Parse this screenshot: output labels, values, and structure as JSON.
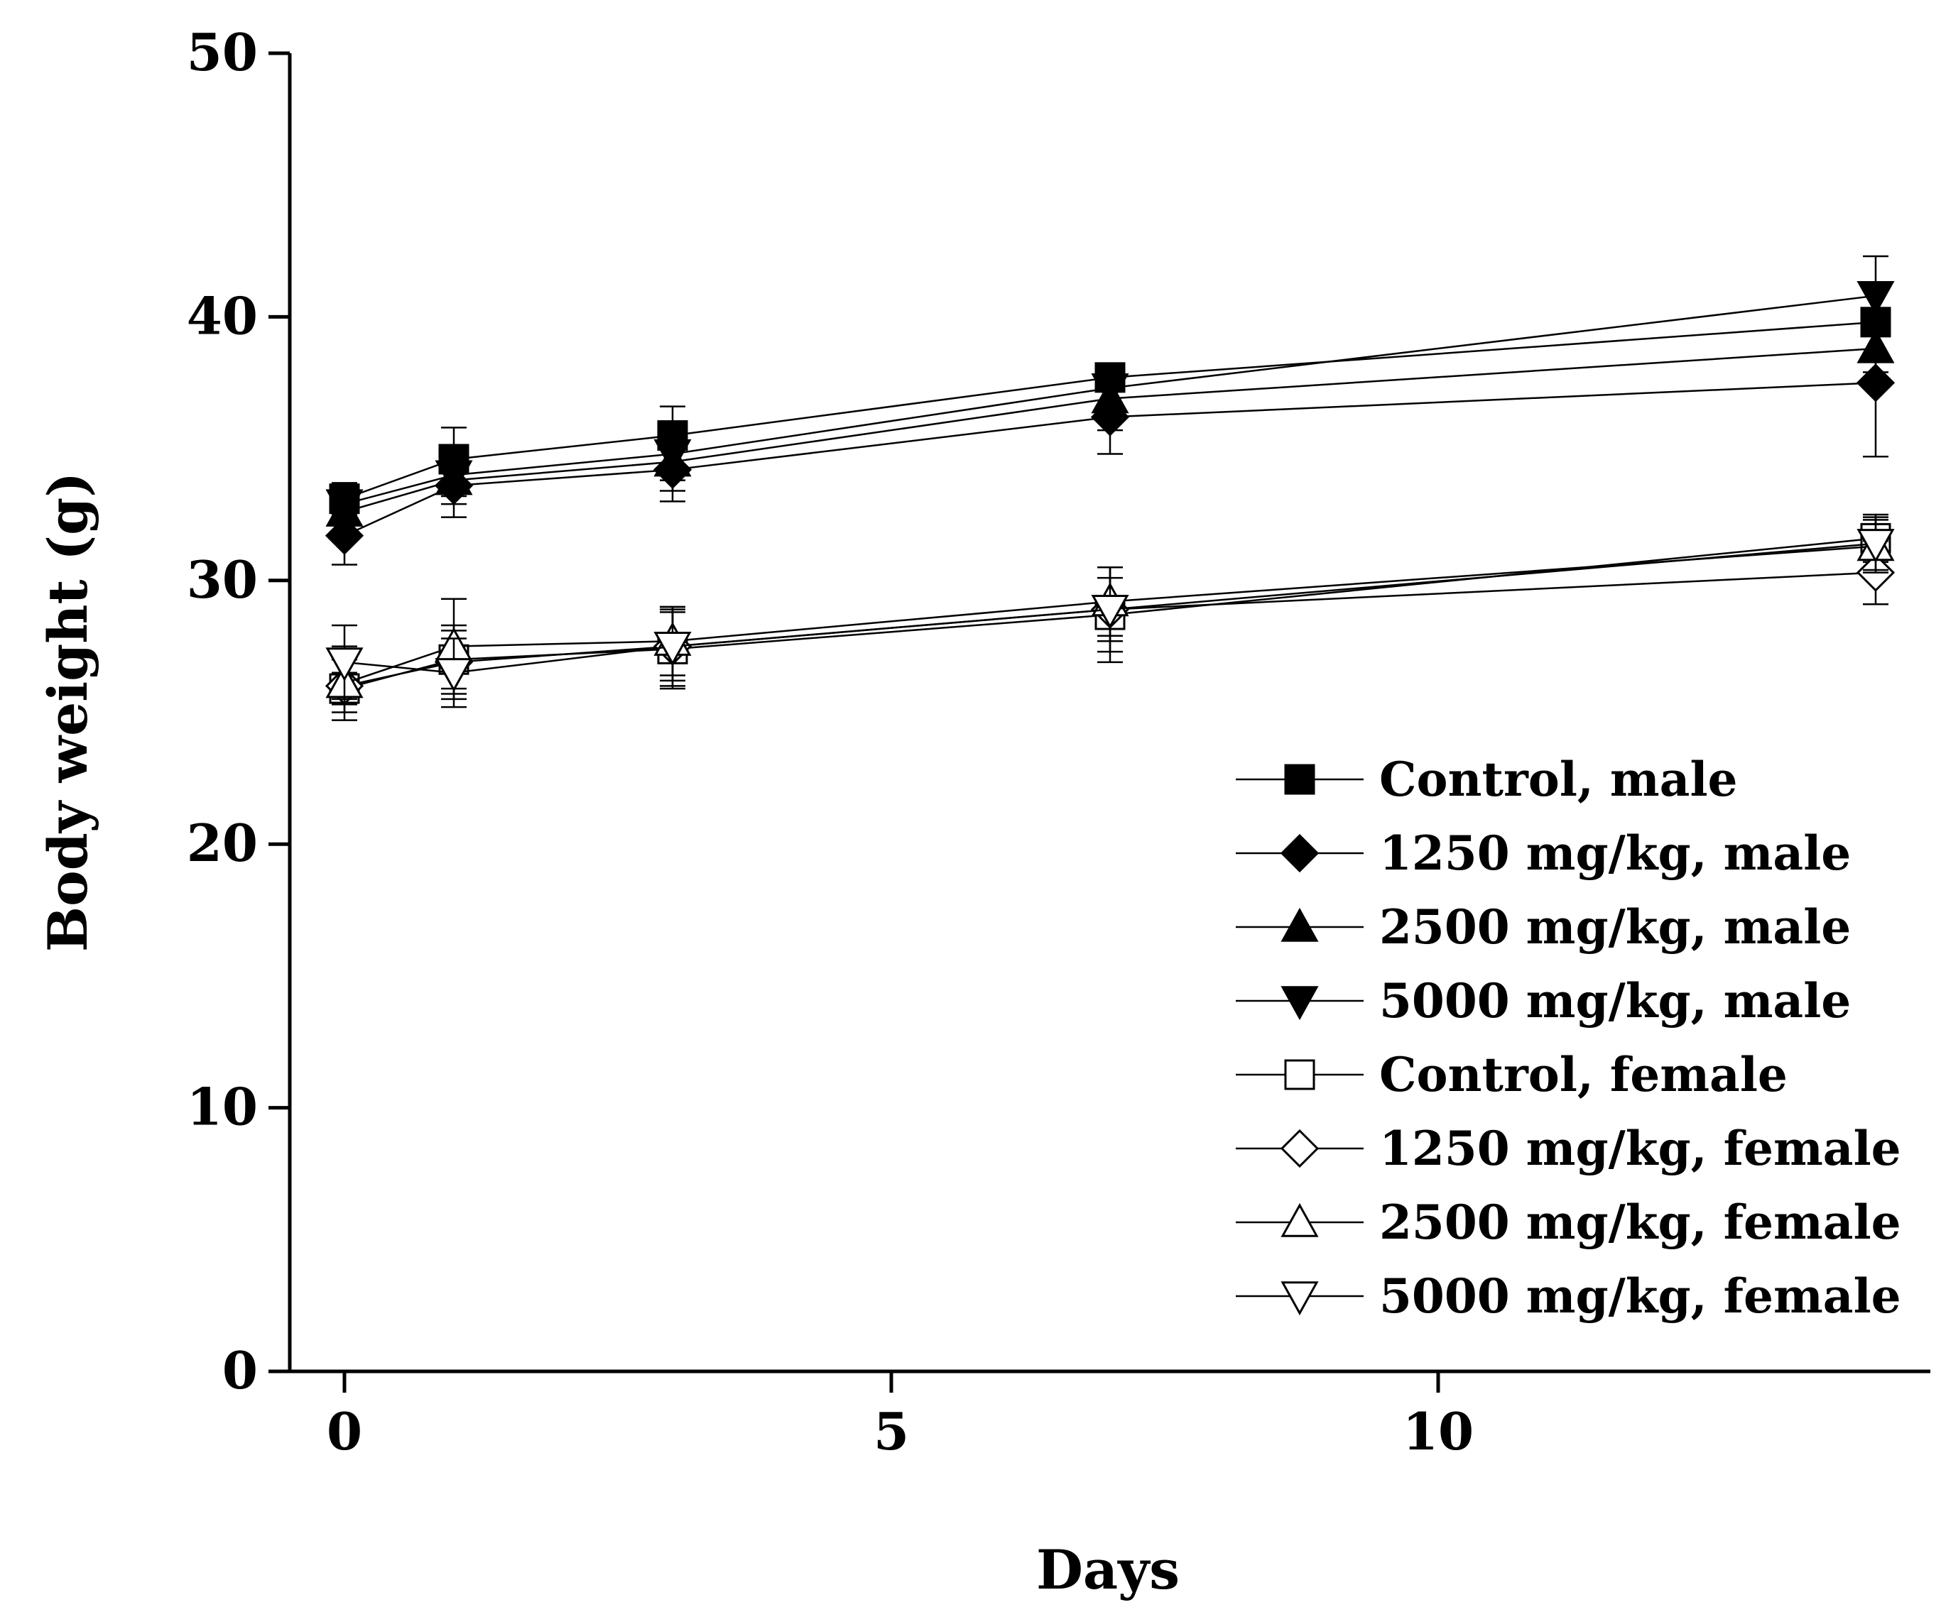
{
  "chart_data": {
    "type": "line",
    "title": "",
    "xlabel": "Days",
    "ylabel": "Body weight (g)",
    "xlim": [
      -0.5,
      14.5
    ],
    "ylim": [
      0,
      50
    ],
    "x_ticks": [
      "0",
      "5",
      "10"
    ],
    "y_ticks": [
      "0",
      "10",
      "20",
      "30",
      "40",
      "50"
    ],
    "grid": false,
    "legend_position": "bottom-right",
    "x": [
      0,
      1,
      3,
      7,
      14
    ],
    "series": [
      {
        "name": "Control, male",
        "marker": "square",
        "filled": true,
        "values": [
          33.1,
          34.6,
          35.5,
          37.7,
          39.8
        ],
        "errors": [
          0.6,
          1.2,
          1.1,
          0.5,
          0.5
        ]
      },
      {
        "name": "1250 mg/kg, male",
        "marker": "diamond",
        "filled": true,
        "values": [
          31.7,
          33.6,
          34.2,
          36.2,
          37.5
        ],
        "errors": [
          1.1,
          1.2,
          1.2,
          1.4,
          2.8
        ]
      },
      {
        "name": "2500 mg/kg, male",
        "marker": "triangle-up",
        "filled": true,
        "values": [
          32.6,
          33.8,
          34.5,
          36.9,
          38.8
        ],
        "errors": [
          0.8,
          0.9,
          1.1,
          1.2,
          0.9
        ]
      },
      {
        "name": "5000 mg/kg, male",
        "marker": "triangle-down",
        "filled": true,
        "values": [
          32.9,
          34.0,
          34.8,
          37.3,
          40.8
        ],
        "errors": [
          0.7,
          0.8,
          1.0,
          0.9,
          1.5
        ]
      },
      {
        "name": "Control, female",
        "marker": "square",
        "filled": false,
        "values": [
          25.9,
          27.0,
          27.4,
          28.7,
          31.6
        ],
        "errors": [
          0.6,
          1.1,
          1.5,
          1.8,
          0.9
        ]
      },
      {
        "name": "1250 mg/kg, female",
        "marker": "diamond",
        "filled": false,
        "values": [
          26.0,
          26.9,
          27.5,
          28.9,
          30.3
        ],
        "errors": [
          1.0,
          1.4,
          1.3,
          1.2,
          1.2
        ]
      },
      {
        "name": "2500 mg/kg, female",
        "marker": "triangle-up",
        "filled": false,
        "values": [
          26.1,
          27.5,
          27.7,
          29.2,
          31.3
        ],
        "errors": [
          1.4,
          1.8,
          1.3,
          1.3,
          1.0
        ]
      },
      {
        "name": "5000 mg/kg, female",
        "marker": "triangle-down",
        "filled": false,
        "values": [
          26.9,
          26.5,
          27.5,
          28.9,
          31.4
        ],
        "errors": [
          1.4,
          1.3,
          1.5,
          1.6,
          1.0
        ]
      }
    ]
  }
}
